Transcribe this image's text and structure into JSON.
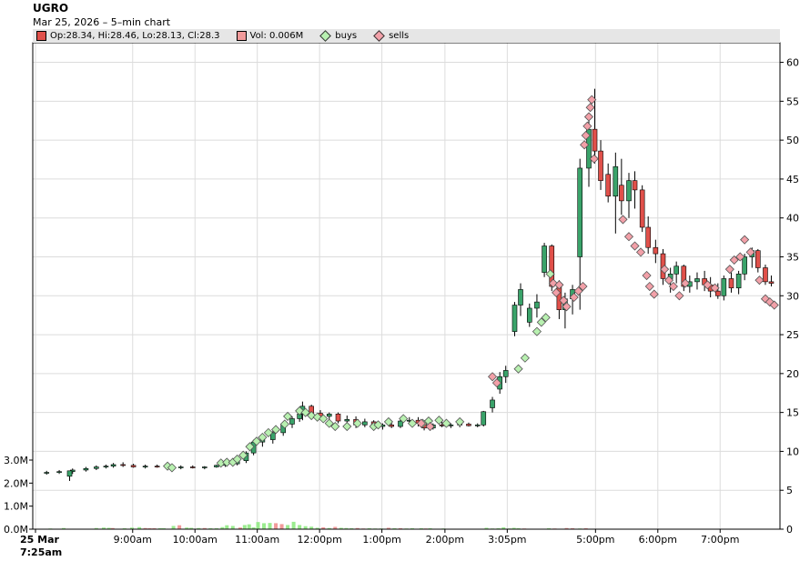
{
  "header": {
    "title": "UGRO",
    "subtitle": "Mar 25, 2026 – 5–min chart"
  },
  "legend": {
    "ohlc": "Op:28.34, Hi:28.46, Lo:28.13, Cl:28.3",
    "vol": "Vol: 0.006M",
    "buys": "buys",
    "sells": "sells"
  },
  "colors": {
    "up": "#3aa36a",
    "down": "#e0504a",
    "vol_up": "#9bec8f",
    "vol_down": "#f19a9a",
    "buy": "#b8f0b0",
    "sell": "#f2a0a8",
    "grid": "#dcdcdc"
  },
  "chart_data": {
    "type": "candlestick",
    "title": "UGRO",
    "price_range": [
      0,
      61
    ],
    "price_ticks": [
      0,
      5,
      10,
      15,
      20,
      25,
      30,
      35,
      40,
      45,
      50,
      55,
      60
    ],
    "volume_range": [
      0,
      3.0
    ],
    "volume_ticks": [
      {
        "v": 0,
        "label": "0.0M"
      },
      {
        "v": 1,
        "label": "1.0M"
      },
      {
        "v": 2,
        "label": "2.0M"
      },
      {
        "v": 3,
        "label": "3.0M"
      }
    ],
    "x_domain": [
      0,
      100
    ],
    "x_ticks": [
      {
        "x": 0,
        "label": "25 Mar",
        "label2": "7:25am",
        "bold": true
      },
      {
        "x": 13.1,
        "label": "9:00am"
      },
      {
        "x": 21.5,
        "label": "10:00am"
      },
      {
        "x": 29.9,
        "label": "11:00am"
      },
      {
        "x": 38.3,
        "label": "12:00pm"
      },
      {
        "x": 46.7,
        "label": "1:00pm"
      },
      {
        "x": 55.2,
        "label": "2:00pm"
      },
      {
        "x": 63.6,
        "label": "3:05pm"
      },
      {
        "x": 75.5,
        "label": "5:00pm"
      },
      {
        "x": 83.9,
        "label": "6:00pm"
      },
      {
        "x": 92.3,
        "label": "7:00pm"
      }
    ],
    "candles": [
      [
        1.5,
        7.2,
        7.5,
        7.0,
        7.3
      ],
      [
        3.2,
        7.3,
        7.6,
        7.1,
        7.4
      ],
      [
        5.0,
        7.4,
        7.8,
        7.1,
        7.6
      ],
      [
        4.6,
        6.8,
        7.4,
        6.2,
        7.5
      ],
      [
        6.8,
        7.6,
        8.0,
        7.4,
        7.8
      ],
      [
        8.2,
        7.8,
        8.2,
        7.6,
        8.0
      ],
      [
        9.5,
        8.0,
        8.3,
        7.8,
        8.1
      ],
      [
        10.5,
        8.1,
        8.5,
        7.9,
        8.3
      ],
      [
        11.8,
        8.3,
        8.6,
        8.0,
        8.2
      ],
      [
        13.2,
        8.2,
        8.4,
        7.9,
        8.0
      ],
      [
        14.8,
        8.0,
        8.3,
        7.8,
        8.1
      ],
      [
        16.4,
        8.1,
        8.3,
        7.9,
        8.0
      ],
      [
        18.0,
        8.0,
        8.2,
        7.7,
        7.9
      ],
      [
        19.6,
        7.9,
        8.2,
        7.7,
        8.0
      ],
      [
        21.2,
        8.0,
        8.2,
        7.8,
        7.9
      ],
      [
        22.8,
        7.9,
        8.1,
        7.7,
        8.0
      ],
      [
        24.4,
        8.0,
        8.3,
        7.9,
        8.2
      ],
      [
        25.6,
        8.2,
        8.6,
        8.0,
        8.4
      ],
      [
        27.2,
        8.4,
        9.0,
        8.2,
        8.8
      ],
      [
        28.4,
        8.8,
        10.0,
        8.5,
        9.8
      ],
      [
        29.4,
        9.8,
        11.5,
        9.5,
        11.2
      ],
      [
        30.6,
        11.2,
        12.0,
        10.6,
        11.5
      ],
      [
        32.0,
        11.5,
        12.6,
        11.0,
        12.4
      ],
      [
        33.4,
        12.4,
        13.8,
        12.0,
        13.5
      ],
      [
        34.6,
        13.5,
        14.5,
        13.0,
        14.2
      ],
      [
        35.6,
        14.2,
        15.2,
        13.8,
        14.8
      ],
      [
        36.0,
        14.8,
        16.4,
        14.0,
        15.8
      ],
      [
        37.2,
        15.8,
        16.0,
        14.6,
        14.9
      ],
      [
        38.4,
        14.9,
        15.3,
        14.2,
        14.5
      ],
      [
        39.6,
        14.5,
        15.0,
        14.0,
        14.8
      ],
      [
        40.8,
        14.8,
        15.0,
        13.6,
        13.9
      ],
      [
        42.0,
        13.9,
        14.6,
        13.4,
        14.1
      ],
      [
        43.2,
        14.1,
        14.5,
        13.0,
        13.4
      ],
      [
        44.4,
        13.4,
        14.2,
        13.1,
        13.8
      ],
      [
        45.6,
        13.8,
        14.0,
        12.9,
        13.2
      ],
      [
        46.8,
        13.2,
        13.6,
        12.8,
        13.4
      ],
      [
        48.0,
        13.4,
        13.8,
        13.0,
        13.2
      ],
      [
        49.2,
        13.2,
        14.2,
        13.0,
        13.9
      ],
      [
        50.4,
        13.9,
        14.4,
        13.6,
        14.0
      ],
      [
        51.6,
        14.0,
        14.4,
        13.2,
        13.6
      ],
      [
        52.4,
        13.6,
        14.0,
        12.7,
        13.0
      ],
      [
        53.6,
        13.0,
        13.6,
        12.8,
        13.4
      ],
      [
        54.8,
        13.4,
        13.8,
        13.1,
        13.3
      ],
      [
        56.0,
        13.3,
        13.6,
        13.0,
        13.4
      ],
      [
        57.2,
        13.4,
        13.8,
        13.1,
        13.5
      ],
      [
        58.4,
        13.5,
        13.7,
        13.2,
        13.3
      ],
      [
        59.6,
        13.3,
        13.6,
        13.1,
        13.4
      ],
      [
        60.4,
        13.4,
        15.2,
        13.2,
        15.1
      ],
      [
        61.6,
        15.6,
        17.0,
        15.0,
        16.6
      ],
      [
        62.6,
        18.0,
        20.2,
        17.4,
        19.6
      ],
      [
        63.4,
        19.6,
        21.0,
        18.8,
        20.4
      ],
      [
        64.6,
        25.4,
        29.2,
        24.8,
        28.8
      ],
      [
        65.4,
        28.8,
        31.6,
        27.4,
        30.8
      ],
      [
        66.6,
        26.6,
        29.0,
        26.0,
        28.4
      ],
      [
        67.6,
        28.4,
        30.2,
        27.2,
        29.2
      ],
      [
        68.6,
        33.0,
        36.8,
        32.4,
        36.4
      ],
      [
        69.6,
        36.4,
        36.6,
        30.6,
        31.2
      ],
      [
        70.6,
        31.2,
        32.0,
        27.0,
        28.2
      ],
      [
        71.4,
        28.2,
        30.4,
        25.8,
        29.6
      ],
      [
        72.4,
        29.6,
        31.4,
        27.6,
        30.8
      ],
      [
        73.4,
        35.0,
        47.6,
        28.2,
        46.4
      ],
      [
        74.6,
        46.4,
        53.0,
        44.0,
        51.4
      ],
      [
        75.4,
        51.4,
        56.6,
        47.0,
        48.6
      ],
      [
        76.2,
        48.6,
        50.0,
        43.6,
        44.8
      ],
      [
        77.2,
        45.6,
        47.0,
        42.0,
        42.8
      ],
      [
        78.2,
        42.8,
        48.4,
        38.0,
        46.6
      ],
      [
        79.0,
        44.2,
        47.6,
        40.4,
        42.2
      ],
      [
        80.0,
        42.2,
        45.8,
        40.0,
        44.8
      ],
      [
        80.8,
        44.8,
        46.0,
        41.2,
        43.6
      ],
      [
        81.8,
        43.6,
        44.2,
        38.2,
        38.8
      ],
      [
        82.6,
        38.8,
        40.2,
        35.4,
        36.2
      ],
      [
        83.6,
        36.2,
        37.2,
        34.2,
        35.4
      ],
      [
        84.6,
        35.4,
        36.0,
        31.4,
        32.2
      ],
      [
        85.6,
        32.2,
        33.6,
        30.4,
        32.8
      ],
      [
        86.4,
        32.8,
        34.4,
        31.6,
        33.8
      ],
      [
        87.4,
        33.8,
        34.0,
        30.6,
        31.2
      ],
      [
        88.2,
        31.2,
        32.6,
        30.4,
        31.8
      ],
      [
        89.2,
        31.8,
        33.0,
        30.8,
        32.2
      ],
      [
        90.2,
        32.2,
        33.2,
        30.6,
        31.4
      ],
      [
        91.0,
        31.4,
        32.4,
        29.8,
        30.6
      ],
      [
        92.0,
        30.6,
        31.6,
        29.6,
        30.0
      ],
      [
        92.8,
        30.0,
        32.6,
        29.4,
        32.2
      ],
      [
        93.8,
        32.2,
        33.0,
        30.4,
        31.0
      ],
      [
        94.8,
        31.0,
        33.2,
        30.2,
        32.8
      ],
      [
        95.6,
        32.8,
        35.4,
        32.0,
        35.0
      ],
      [
        96.6,
        35.0,
        36.2,
        33.6,
        35.8
      ],
      [
        97.4,
        35.8,
        36.0,
        33.0,
        33.6
      ],
      [
        98.4,
        33.6,
        34.0,
        31.4,
        31.8
      ],
      [
        99.2,
        31.8,
        32.6,
        31.2,
        31.6
      ]
    ],
    "volumes": [
      [
        2.0,
        0.03,
        1
      ],
      [
        3.8,
        0.05,
        1
      ],
      [
        5.2,
        0.02,
        1
      ],
      [
        6.6,
        0.01,
        1
      ],
      [
        8.2,
        0.05,
        1
      ],
      [
        9.2,
        0.07,
        1
      ],
      [
        9.9,
        0.06,
        1
      ],
      [
        10.4,
        0.05,
        0
      ],
      [
        12.0,
        0.04,
        1
      ],
      [
        13.0,
        0.07,
        1
      ],
      [
        14.0,
        0.09,
        1
      ],
      [
        14.8,
        0.05,
        0
      ],
      [
        15.4,
        0.04,
        0
      ],
      [
        16.0,
        0.04,
        0
      ],
      [
        16.8,
        0.04,
        1
      ],
      [
        17.3,
        0.04,
        1
      ],
      [
        18.6,
        0.14,
        1
      ],
      [
        19.4,
        0.17,
        0
      ],
      [
        20.4,
        0.07,
        1
      ],
      [
        21.0,
        0.06,
        1
      ],
      [
        22.0,
        0.05,
        1
      ],
      [
        22.8,
        0.05,
        0
      ],
      [
        23.6,
        0.04,
        1
      ],
      [
        24.4,
        0.04,
        1
      ],
      [
        25.2,
        0.09,
        1
      ],
      [
        25.8,
        0.17,
        1
      ],
      [
        26.6,
        0.14,
        1
      ],
      [
        27.6,
        0.07,
        0
      ],
      [
        28.2,
        0.18,
        1
      ],
      [
        28.8,
        0.21,
        1
      ],
      [
        29.4,
        0.08,
        1
      ],
      [
        30.0,
        0.31,
        1
      ],
      [
        30.8,
        0.26,
        1
      ],
      [
        31.6,
        0.27,
        1
      ],
      [
        32.4,
        0.26,
        0
      ],
      [
        33.2,
        0.22,
        0
      ],
      [
        34.0,
        0.18,
        1
      ],
      [
        34.8,
        0.32,
        1
      ],
      [
        35.6,
        0.18,
        1
      ],
      [
        36.4,
        0.13,
        1
      ],
      [
        37.2,
        0.11,
        1
      ],
      [
        38.0,
        0.06,
        1
      ],
      [
        38.8,
        0.08,
        0
      ],
      [
        39.6,
        0.05,
        1
      ],
      [
        40.4,
        0.1,
        0
      ],
      [
        41.2,
        0.06,
        1
      ],
      [
        41.9,
        0.05,
        1
      ],
      [
        42.6,
        0.04,
        1
      ],
      [
        43.4,
        0.05,
        0
      ],
      [
        44.2,
        0.03,
        0
      ],
      [
        45.0,
        0.04,
        1
      ],
      [
        45.8,
        0.03,
        1
      ],
      [
        46.6,
        0.03,
        1
      ],
      [
        47.6,
        0.06,
        0
      ],
      [
        48.4,
        0.04,
        1
      ],
      [
        49.2,
        0.04,
        0
      ],
      [
        50.0,
        0.03,
        1
      ],
      [
        50.8,
        0.04,
        1
      ],
      [
        51.4,
        0.02,
        1
      ],
      [
        52.0,
        0.04,
        1
      ],
      [
        52.6,
        0.03,
        0
      ],
      [
        53.2,
        0.04,
        1
      ],
      [
        53.8,
        0.02,
        1
      ],
      [
        54.4,
        0.02,
        1
      ],
      [
        55.0,
        0.03,
        1
      ],
      [
        55.6,
        0.01,
        1
      ],
      [
        56.4,
        0.02,
        1
      ],
      [
        57.6,
        0.01,
        1
      ],
      [
        58.2,
        0.01,
        1
      ],
      [
        59.2,
        0.01,
        1
      ],
      [
        60.0,
        0.01,
        1
      ],
      [
        60.8,
        0.06,
        1
      ],
      [
        61.6,
        0.03,
        1
      ],
      [
        62.4,
        0.04,
        1
      ],
      [
        63.1,
        0.08,
        1
      ],
      [
        63.9,
        0.03,
        1
      ],
      [
        64.5,
        0.06,
        1
      ],
      [
        65.1,
        0.04,
        1
      ],
      [
        65.9,
        0.03,
        0
      ],
      [
        66.9,
        0.02,
        1
      ],
      [
        67.6,
        0.01,
        1
      ],
      [
        68.4,
        0.02,
        0
      ],
      [
        69.2,
        0.04,
        1
      ],
      [
        70.0,
        0.03,
        0
      ],
      [
        70.8,
        0.02,
        1
      ],
      [
        71.6,
        0.05,
        0
      ],
      [
        72.4,
        0.04,
        0
      ],
      [
        73.4,
        0.03,
        1
      ],
      [
        74.2,
        0.04,
        0
      ],
      [
        75.4,
        0.02,
        0
      ],
      [
        76.4,
        0.01,
        0
      ],
      [
        77.6,
        0.01,
        1
      ],
      [
        78.6,
        0.01,
        1
      ],
      [
        79.6,
        0.01,
        0
      ],
      [
        80.8,
        0.01,
        0
      ],
      [
        82.4,
        0.01,
        0
      ],
      [
        84.0,
        0.01,
        0
      ],
      [
        85.6,
        0.01,
        1
      ],
      [
        87.2,
        0.01,
        1
      ],
      [
        88.8,
        0.01,
        0
      ],
      [
        90.4,
        0.01,
        1
      ],
      [
        92.0,
        0.01,
        0
      ],
      [
        93.6,
        0.01,
        1
      ],
      [
        95.2,
        0.01,
        1
      ],
      [
        96.8,
        0.01,
        1
      ],
      [
        98.4,
        0.01,
        0
      ]
    ],
    "buys": [
      [
        17.8,
        8.1
      ],
      [
        18.4,
        7.9
      ],
      [
        25.0,
        8.5
      ],
      [
        25.8,
        8.6
      ],
      [
        26.6,
        8.6
      ],
      [
        27.2,
        9.0
      ],
      [
        28.0,
        9.5
      ],
      [
        28.9,
        10.6
      ],
      [
        29.8,
        11.3
      ],
      [
        30.6,
        11.8
      ],
      [
        31.4,
        12.4
      ],
      [
        32.4,
        12.8
      ],
      [
        33.6,
        13.5
      ],
      [
        34.0,
        14.5
      ],
      [
        35.6,
        15.2
      ],
      [
        36.4,
        15.0
      ],
      [
        37.2,
        14.6
      ],
      [
        38.0,
        14.4
      ],
      [
        38.8,
        14.2
      ],
      [
        39.6,
        13.6
      ],
      [
        40.4,
        13.2
      ],
      [
        42.0,
        13.2
      ],
      [
        43.4,
        13.6
      ],
      [
        45.6,
        13.2
      ],
      [
        46.2,
        13.4
      ],
      [
        47.6,
        13.8
      ],
      [
        49.6,
        14.2
      ],
      [
        50.8,
        13.6
      ],
      [
        52.2,
        13.6
      ],
      [
        53.0,
        13.9
      ],
      [
        54.4,
        14.0
      ],
      [
        55.4,
        13.6
      ],
      [
        57.2,
        13.8
      ],
      [
        65.1,
        20.6
      ],
      [
        66.0,
        22.0
      ],
      [
        67.6,
        25.4
      ],
      [
        68.2,
        26.6
      ],
      [
        68.8,
        27.2
      ],
      [
        69.4,
        32.8
      ]
    ],
    "sells": [
      [
        61.6,
        19.6
      ],
      [
        62.2,
        18.8
      ],
      [
        52.0,
        13.6
      ],
      [
        53.2,
        13.2
      ],
      [
        69.8,
        31.6
      ],
      [
        70.2,
        30.4
      ],
      [
        70.6,
        31.4
      ],
      [
        71.2,
        29.4
      ],
      [
        71.6,
        28.6
      ],
      [
        72.6,
        29.8
      ],
      [
        73.2,
        30.6
      ],
      [
        73.8,
        31.2
      ],
      [
        74.0,
        49.4
      ],
      [
        74.2,
        50.6
      ],
      [
        74.4,
        51.8
      ],
      [
        74.6,
        53.0
      ],
      [
        74.8,
        54.2
      ],
      [
        75.0,
        55.2
      ],
      [
        75.3,
        47.6
      ],
      [
        79.2,
        39.8
      ],
      [
        80.0,
        37.6
      ],
      [
        80.8,
        36.4
      ],
      [
        81.6,
        35.6
      ],
      [
        82.4,
        32.6
      ],
      [
        82.8,
        31.2
      ],
      [
        83.4,
        30.2
      ],
      [
        84.8,
        33.4
      ],
      [
        85.4,
        32.0
      ],
      [
        86.0,
        31.2
      ],
      [
        86.8,
        30.0
      ],
      [
        87.6,
        31.6
      ],
      [
        90.6,
        31.4
      ],
      [
        91.6,
        31.0
      ],
      [
        93.6,
        33.4
      ],
      [
        94.2,
        34.6
      ],
      [
        95.0,
        35.0
      ],
      [
        95.6,
        37.2
      ],
      [
        96.4,
        35.6
      ],
      [
        97.6,
        32.0
      ],
      [
        98.4,
        29.6
      ],
      [
        99.0,
        29.2
      ],
      [
        99.6,
        28.8
      ]
    ]
  }
}
